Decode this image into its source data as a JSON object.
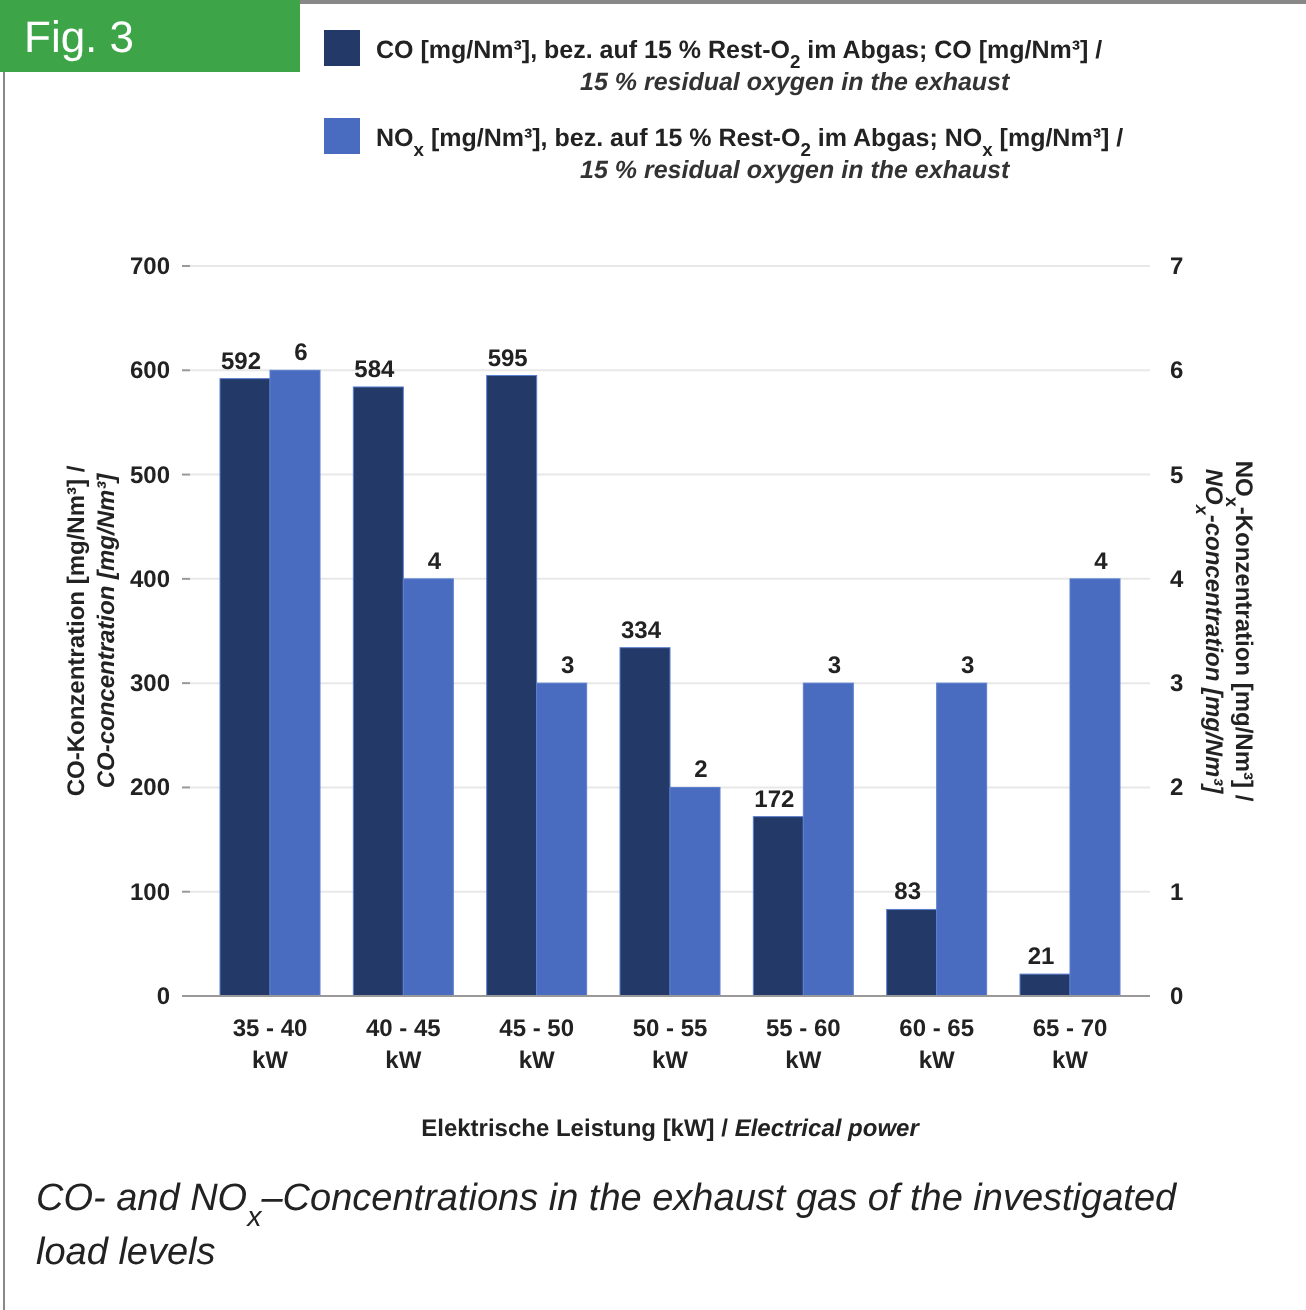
{
  "chart_data": {
    "type": "bar",
    "title": "Fig. 3",
    "categories": [
      "35 - 40 kW",
      "40 - 45 kW",
      "45 - 50 kW",
      "50 - 55 kW",
      "55 - 60 kW",
      "60 - 65 kW",
      "65 - 70 kW"
    ],
    "series": [
      {
        "name": "CO [mg/Nm³], bez. auf 15 % Rest-O$_{2}$ im Abgas; CO [mg/Nm³] / 15 % residual oxygen in the exhaust",
        "color": "#233a68",
        "values": [
          592,
          584,
          595,
          334,
          172,
          83,
          21
        ]
      },
      {
        "name": "NO$_{x}$ [mg/Nm³], bez. auf 15 % Rest-O$_{2}$ im Abgas; NO$_{x}$ [mg/Nm³] / 15 % residual oxygen in the exhaust",
        "color": "#4a6cc0",
        "axis": "y2",
        "values": [
          6,
          4,
          3,
          2,
          3,
          3,
          4
        ]
      }
    ],
    "ylim": [
      0,
      700
    ],
    "yticks": [
      0,
      100,
      200,
      300,
      400,
      500,
      600,
      700
    ],
    "y2lim": [
      0,
      7
    ],
    "y2ticks": [
      0,
      1,
      2,
      3,
      4,
      5,
      6,
      7
    ],
    "xlabel": "Elektrische Leistung [kW] / Electrical power",
    "ylabel": "CO-Konzentration [mg/Nm³] / CO-concentration [mg/Nm³]",
    "y2label": "NO$_{x}$-Konzentration [mg/Nm³] / NO$_{x}$-concentration [mg/Nm³]",
    "annotations": [
      "CO- and NO$_{x}$–Concentrations in the exhaust gas of the investigated load levels"
    ],
    "data_labels": true,
    "grid": "y",
    "legend": "top"
  }
}
